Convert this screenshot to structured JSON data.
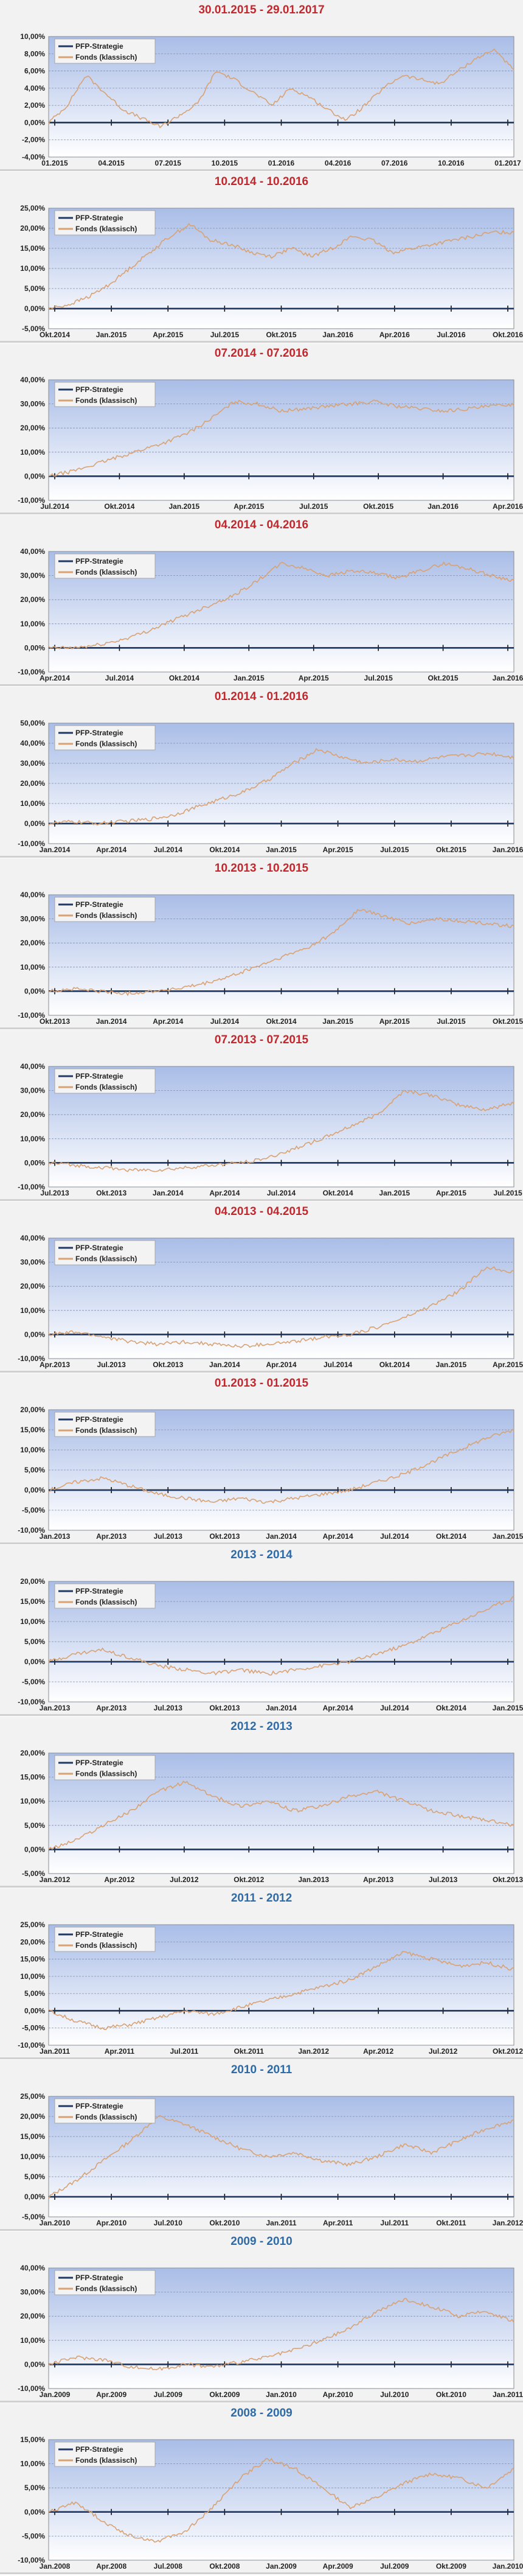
{
  "colors": {
    "strategy": "#1f3864",
    "fund": "#d9a273",
    "title_red": "#c0282d",
    "title_blue": "#2e6aa6",
    "plot_top": "#a9bde7",
    "plot_bottom": "#ffffff"
  },
  "chart_data": [
    {
      "type": "line",
      "title": "30.01.2015 - 29.01.2017",
      "y_ticks": [
        "10,00%",
        "8,00%",
        "6,00%",
        "4,00%",
        "2,00%",
        "0,00%",
        "-2,00%",
        "-4,00%"
      ],
      "ylim": [
        -4,
        10
      ],
      "x_ticks": [
        "01.2015",
        "04.2015",
        "07.2015",
        "10.2015",
        "01.2016",
        "04.2016",
        "07.2016",
        "10.2016",
        "01.2017"
      ],
      "series": [
        {
          "name": "PFP-Strategie",
          "values": [
            0,
            0,
            0,
            0,
            0,
            0,
            0,
            0,
            0,
            0,
            0,
            0,
            0,
            0,
            0,
            0,
            0,
            0,
            0,
            0,
            0,
            0,
            0,
            0,
            0
          ]
        },
        {
          "name": "Fonds (klassisch)",
          "values": [
            0,
            2.0,
            5.5,
            3.5,
            1.5,
            0.5,
            -0.5,
            0.8,
            2.2,
            6.0,
            5.0,
            3.5,
            2.0,
            4.0,
            3.0,
            1.5,
            0.3,
            2.0,
            4.0,
            5.5,
            5.0,
            4.5,
            6.0,
            7.5,
            8.5,
            6.0
          ]
        }
      ]
    },
    {
      "type": "line",
      "title": "10.2014 - 10.2016",
      "y_ticks": [
        "25,00%",
        "20,00%",
        "15,00%",
        "10,00%",
        "5,00%",
        "0,00%",
        "-5,00%"
      ],
      "ylim": [
        -5,
        25
      ],
      "x_ticks": [
        "Okt.2014",
        "Jan.2015",
        "Apr.2015",
        "Jul.2015",
        "Okt.2015",
        "Jan.2016",
        "Apr.2016",
        "Jul.2016",
        "Okt.2016"
      ],
      "series": [
        {
          "name": "PFP-Strategie",
          "values": [
            0,
            0,
            0,
            0,
            0,
            0,
            0,
            0,
            0
          ]
        },
        {
          "name": "Fonds (klassisch)",
          "values": [
            0,
            1,
            3,
            6,
            10,
            14,
            18,
            21,
            17,
            16,
            14,
            13,
            15,
            13,
            15,
            18,
            17,
            14,
            15,
            16,
            17,
            18,
            19,
            19
          ]
        }
      ]
    },
    {
      "type": "line",
      "title": "07.2014 - 07.2016",
      "y_ticks": [
        "40,00%",
        "30,00%",
        "20,00%",
        "10,00%",
        "0,00%",
        "-10,00%"
      ],
      "ylim": [
        -10,
        40
      ],
      "x_ticks": [
        "Jul.2014",
        "Okt.2014",
        "Jan.2015",
        "Apr.2015",
        "Jul.2015",
        "Okt.2015",
        "Jan.2016",
        "Apr.2016"
      ],
      "series": [
        {
          "name": "PFP-Strategie",
          "values": [
            0,
            0,
            0,
            0,
            0,
            0,
            0,
            0
          ]
        },
        {
          "name": "Fonds (klassisch)",
          "values": [
            0,
            2,
            5,
            8,
            11,
            14,
            18,
            24,
            31,
            30,
            27,
            28,
            29,
            30,
            31,
            29,
            28,
            27,
            28,
            29,
            30
          ]
        }
      ]
    },
    {
      "type": "line",
      "title": "04.2014 - 04.2016",
      "y_ticks": [
        "40,00%",
        "30,00%",
        "20,00%",
        "10,00%",
        "0,00%",
        "-10,00%"
      ],
      "ylim": [
        -10,
        40
      ],
      "x_ticks": [
        "Apr.2014",
        "Jul.2014",
        "Okt.2014",
        "Jan.2015",
        "Apr.2015",
        "Jul.2015",
        "Okt.2015",
        "Jan.2016"
      ],
      "series": [
        {
          "name": "PFP-Strategie",
          "values": [
            0,
            0,
            0,
            0,
            0,
            0,
            0,
            0
          ]
        },
        {
          "name": "Fonds (klassisch)",
          "values": [
            0,
            0,
            1,
            3,
            6,
            10,
            14,
            18,
            22,
            28,
            35,
            33,
            30,
            32,
            31,
            29,
            32,
            35,
            33,
            30,
            28
          ]
        }
      ]
    },
    {
      "type": "line",
      "title": "01.2014 - 01.2016",
      "y_ticks": [
        "50,00%",
        "40,00%",
        "30,00%",
        "20,00%",
        "10,00%",
        "0,00%",
        "-10,00%"
      ],
      "ylim": [
        -10,
        50
      ],
      "x_ticks": [
        "Jan.2014",
        "Apr.2014",
        "Jul.2014",
        "Okt.2014",
        "Jan.2015",
        "Apr.2015",
        "Jul.2015",
        "Okt.2015",
        "Jan.2016"
      ],
      "series": [
        {
          "name": "PFP-Strategie",
          "values": [
            0,
            0,
            0,
            0,
            0,
            0,
            0,
            0,
            0
          ]
        },
        {
          "name": "Fonds (klassisch)",
          "values": [
            0,
            1,
            0,
            1,
            2,
            4,
            8,
            12,
            16,
            22,
            30,
            37,
            33,
            30,
            32,
            31,
            33,
            34,
            35,
            33
          ]
        }
      ]
    },
    {
      "type": "line",
      "title": "10.2013 - 10.2015",
      "y_ticks": [
        "40,00%",
        "30,00%",
        "20,00%",
        "10,00%",
        "0,00%",
        "-10,00%"
      ],
      "ylim": [
        -10,
        40
      ],
      "x_ticks": [
        "Okt.2013",
        "Jan.2014",
        "Apr.2014",
        "Jul.2014",
        "Okt.2014",
        "Jan.2015",
        "Apr.2015",
        "Jul.2015",
        "Okt.2015"
      ],
      "series": [
        {
          "name": "PFP-Strategie",
          "values": [
            0,
            0,
            0,
            0,
            0,
            0,
            0,
            0,
            0
          ]
        },
        {
          "name": "Fonds (klassisch)",
          "values": [
            0,
            1,
            0,
            -1,
            0,
            1,
            3,
            6,
            10,
            14,
            18,
            24,
            34,
            31,
            28,
            30,
            29,
            28,
            27
          ]
        }
      ]
    },
    {
      "type": "line",
      "title": "07.2013 - 07.2015",
      "y_ticks": [
        "40,00%",
        "30,00%",
        "20,00%",
        "10,00%",
        "0,00%",
        "-10,00%"
      ],
      "ylim": [
        -10,
        40
      ],
      "x_ticks": [
        "Jul.2013",
        "Okt.2013",
        "Jan.2014",
        "Apr.2014",
        "Jul.2014",
        "Okt.2014",
        "Jan.2015",
        "Apr.2015",
        "Jul.2015"
      ],
      "series": [
        {
          "name": "PFP-Strategie",
          "values": [
            0,
            0,
            0,
            0,
            0,
            0,
            0,
            0,
            0
          ]
        },
        {
          "name": "Fonds (klassisch)",
          "values": [
            0,
            -1,
            -2,
            -3,
            -3,
            -2,
            -1,
            0,
            2,
            6,
            10,
            15,
            20,
            30,
            28,
            24,
            22,
            25
          ]
        }
      ]
    },
    {
      "type": "line",
      "title": "04.2013 - 04.2015",
      "y_ticks": [
        "40,00%",
        "30,00%",
        "20,00%",
        "10,00%",
        "0,00%",
        "-10,00%"
      ],
      "ylim": [
        -10,
        40
      ],
      "x_ticks": [
        "Apr.2013",
        "Jul.2013",
        "Okt.2013",
        "Jan.2014",
        "Apr.2014",
        "Jul.2014",
        "Okt.2014",
        "Jan.2015",
        "Apr.2015"
      ],
      "series": [
        {
          "name": "PFP-Strategie",
          "values": [
            0,
            0,
            0,
            0,
            0,
            0,
            0,
            0,
            0
          ]
        },
        {
          "name": "Fonds (klassisch)",
          "values": [
            0,
            1,
            -1,
            -3,
            -4,
            -3,
            -4,
            -5,
            -4,
            -3,
            -1,
            0,
            3,
            7,
            12,
            18,
            28,
            26
          ]
        }
      ]
    },
    {
      "type": "line",
      "title": "01.2013 - 01.2015",
      "y_ticks": [
        "20,00%",
        "15,00%",
        "10,00%",
        "5,00%",
        "0,00%",
        "-5,00%",
        "-10,00%"
      ],
      "ylim": [
        -10,
        20
      ],
      "x_ticks": [
        "Jan.2013",
        "Apr.2013",
        "Jul.2013",
        "Okt.2013",
        "Jan.2014",
        "Apr.2014",
        "Jul.2014",
        "Okt.2014",
        "Jan.2015"
      ],
      "series": [
        {
          "name": "PFP-Strategie",
          "values": [
            0,
            0,
            0,
            0,
            0,
            0,
            0,
            0,
            0
          ]
        },
        {
          "name": "Fonds (klassisch)",
          "values": [
            0,
            2,
            3,
            1,
            -1,
            -2,
            -3,
            -2,
            -3,
            -2,
            -1,
            0,
            2,
            4,
            7,
            10,
            13,
            15
          ]
        }
      ]
    },
    {
      "type": "line",
      "title": "2013 - 2014",
      "y_ticks": [
        "20,00%",
        "15,00%",
        "10,00%",
        "5,00%",
        "0,00%",
        "-5,00%",
        "-10,00%"
      ],
      "ylim": [
        -10,
        20
      ],
      "x_ticks": [
        "Jan.2013",
        "Apr.2013",
        "Jul.2013",
        "Okt.2013",
        "Jan.2014",
        "Apr.2014",
        "Jul.2014",
        "Okt.2014",
        "Jan.2015"
      ],
      "series": [
        {
          "name": "PFP-Strategie",
          "values": [
            0,
            0,
            0,
            0,
            0,
            0,
            0,
            0,
            0
          ]
        },
        {
          "name": "Fonds (klassisch)",
          "values": [
            0,
            2,
            3,
            1,
            -1,
            -2,
            -3,
            -2,
            -3,
            -2,
            -1,
            0,
            2,
            4,
            7,
            10,
            13,
            16
          ]
        }
      ]
    },
    {
      "type": "line",
      "title": "2012 - 2013",
      "y_ticks": [
        "20,00%",
        "15,00%",
        "10,00%",
        "5,00%",
        "0,00%",
        "-5,00%"
      ],
      "ylim": [
        -5,
        20
      ],
      "x_ticks": [
        "Jan.2012",
        "Apr.2012",
        "Jul.2012",
        "Okt.2012",
        "Jan.2013",
        "Apr.2013",
        "Jul.2013",
        "Okt.2013"
      ],
      "series": [
        {
          "name": "PFP-Strategie",
          "values": [
            0,
            0,
            0,
            0,
            0,
            0,
            0,
            0
          ]
        },
        {
          "name": "Fonds (klassisch)",
          "values": [
            0,
            2,
            5,
            8,
            12,
            14,
            11,
            9,
            10,
            8,
            9,
            11,
            12,
            10,
            8,
            7,
            6,
            5
          ]
        }
      ]
    },
    {
      "type": "line",
      "title": "2011 - 2012",
      "y_ticks": [
        "25,00%",
        "20,00%",
        "15,00%",
        "10,00%",
        "5,00%",
        "0,00%",
        "-5,00%",
        "-10,00%"
      ],
      "ylim": [
        -10,
        25
      ],
      "x_ticks": [
        "Jan.2011",
        "Apr.2011",
        "Jul.2011",
        "Okt.2011",
        "Jan.2012",
        "Apr.2012",
        "Jul.2012",
        "Okt.2012"
      ],
      "series": [
        {
          "name": "PFP-Strategie",
          "values": [
            0,
            0,
            0,
            0,
            0,
            0,
            0,
            0
          ]
        },
        {
          "name": "Fonds (klassisch)",
          "values": [
            0,
            -3,
            -5,
            -4,
            -2,
            0,
            -1,
            1,
            3,
            5,
            7,
            9,
            13,
            17,
            15,
            13,
            14,
            12
          ]
        }
      ]
    },
    {
      "type": "line",
      "title": "2010 - 2011",
      "y_ticks": [
        "25,00%",
        "20,00%",
        "15,00%",
        "10,00%",
        "5,00%",
        "0,00%",
        "-5,00%"
      ],
      "ylim": [
        -5,
        25
      ],
      "x_ticks": [
        "Jan.2010",
        "Apr.2010",
        "Jul.2010",
        "Okt.2010",
        "Jan.2011",
        "Apr.2011",
        "Jul.2011",
        "Okt.2011",
        "Jan.2012"
      ],
      "series": [
        {
          "name": "PFP-Strategie",
          "values": [
            0,
            0,
            0,
            0,
            0,
            0,
            0,
            0,
            0
          ]
        },
        {
          "name": "Fonds (klassisch)",
          "values": [
            0,
            4,
            9,
            14,
            20,
            18,
            15,
            12,
            10,
            11,
            9,
            8,
            10,
            13,
            11,
            14,
            17,
            19
          ]
        }
      ]
    },
    {
      "type": "line",
      "title": "2009 - 2010",
      "y_ticks": [
        "40,00%",
        "30,00%",
        "20,00%",
        "10,00%",
        "0,00%",
        "-10,00%"
      ],
      "ylim": [
        -10,
        40
      ],
      "x_ticks": [
        "Jan.2009",
        "Apr.2009",
        "Jul.2009",
        "Okt.2009",
        "Jan.2010",
        "Apr.2010",
        "Jul.2010",
        "Okt.2010",
        "Jan.2011"
      ],
      "series": [
        {
          "name": "PFP-Strategie",
          "values": [
            0,
            0,
            0,
            0,
            0,
            0,
            0,
            0,
            0
          ]
        },
        {
          "name": "Fonds (klassisch)",
          "values": [
            0,
            3,
            2,
            -1,
            -2,
            0,
            -1,
            1,
            3,
            6,
            10,
            15,
            22,
            27,
            24,
            20,
            22,
            18
          ]
        }
      ]
    },
    {
      "type": "line",
      "title": "2008 - 2009",
      "y_ticks": [
        "15,00%",
        "10,00%",
        "5,00%",
        "0,00%",
        "-5,00%",
        "-10,00%"
      ],
      "ylim": [
        -10,
        15
      ],
      "x_ticks": [
        "Jan.2008",
        "Apr.2008",
        "Jul.2008",
        "Okt.2008",
        "Jan.2009",
        "Apr.2009",
        "Jul.2009",
        "Okt.2009",
        "Jan.2010"
      ],
      "series": [
        {
          "name": "PFP-Strategie",
          "values": [
            0,
            0,
            0,
            0,
            0,
            0,
            0,
            0,
            0
          ]
        },
        {
          "name": "Fonds (klassisch)",
          "values": [
            0,
            2,
            -2,
            -5,
            -6,
            -4,
            1,
            7,
            11,
            9,
            5,
            1,
            3,
            6,
            8,
            7,
            5,
            9
          ]
        }
      ]
    }
  ]
}
